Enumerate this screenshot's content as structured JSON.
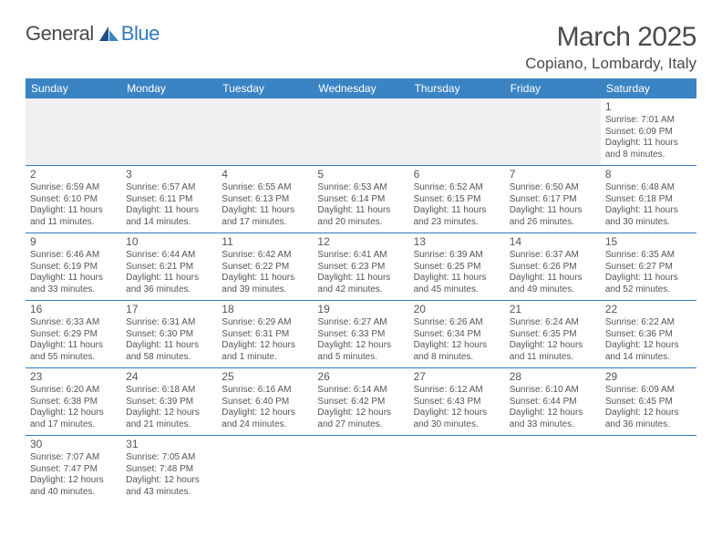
{
  "logo": {
    "text_a": "General",
    "text_b": "Blue"
  },
  "title": "March 2025",
  "location": "Copiano, Lombardy, Italy",
  "colors": {
    "header_bg": "#3b84c4",
    "border": "#2f7bbf",
    "text": "#555555",
    "title_text": "#4a4a4a",
    "empty_bg": "#f0f0f0"
  },
  "days_of_week": [
    "Sunday",
    "Monday",
    "Tuesday",
    "Wednesday",
    "Thursday",
    "Friday",
    "Saturday"
  ],
  "weeks": [
    [
      null,
      null,
      null,
      null,
      null,
      null,
      {
        "n": "1",
        "sunrise": "Sunrise: 7:01 AM",
        "sunset": "Sunset: 6:09 PM",
        "day1": "Daylight: 11 hours",
        "day2": "and 8 minutes."
      }
    ],
    [
      {
        "n": "2",
        "sunrise": "Sunrise: 6:59 AM",
        "sunset": "Sunset: 6:10 PM",
        "day1": "Daylight: 11 hours",
        "day2": "and 11 minutes."
      },
      {
        "n": "3",
        "sunrise": "Sunrise: 6:57 AM",
        "sunset": "Sunset: 6:11 PM",
        "day1": "Daylight: 11 hours",
        "day2": "and 14 minutes."
      },
      {
        "n": "4",
        "sunrise": "Sunrise: 6:55 AM",
        "sunset": "Sunset: 6:13 PM",
        "day1": "Daylight: 11 hours",
        "day2": "and 17 minutes."
      },
      {
        "n": "5",
        "sunrise": "Sunrise: 6:53 AM",
        "sunset": "Sunset: 6:14 PM",
        "day1": "Daylight: 11 hours",
        "day2": "and 20 minutes."
      },
      {
        "n": "6",
        "sunrise": "Sunrise: 6:52 AM",
        "sunset": "Sunset: 6:15 PM",
        "day1": "Daylight: 11 hours",
        "day2": "and 23 minutes."
      },
      {
        "n": "7",
        "sunrise": "Sunrise: 6:50 AM",
        "sunset": "Sunset: 6:17 PM",
        "day1": "Daylight: 11 hours",
        "day2": "and 26 minutes."
      },
      {
        "n": "8",
        "sunrise": "Sunrise: 6:48 AM",
        "sunset": "Sunset: 6:18 PM",
        "day1": "Daylight: 11 hours",
        "day2": "and 30 minutes."
      }
    ],
    [
      {
        "n": "9",
        "sunrise": "Sunrise: 6:46 AM",
        "sunset": "Sunset: 6:19 PM",
        "day1": "Daylight: 11 hours",
        "day2": "and 33 minutes."
      },
      {
        "n": "10",
        "sunrise": "Sunrise: 6:44 AM",
        "sunset": "Sunset: 6:21 PM",
        "day1": "Daylight: 11 hours",
        "day2": "and 36 minutes."
      },
      {
        "n": "11",
        "sunrise": "Sunrise: 6:42 AM",
        "sunset": "Sunset: 6:22 PM",
        "day1": "Daylight: 11 hours",
        "day2": "and 39 minutes."
      },
      {
        "n": "12",
        "sunrise": "Sunrise: 6:41 AM",
        "sunset": "Sunset: 6:23 PM",
        "day1": "Daylight: 11 hours",
        "day2": "and 42 minutes."
      },
      {
        "n": "13",
        "sunrise": "Sunrise: 6:39 AM",
        "sunset": "Sunset: 6:25 PM",
        "day1": "Daylight: 11 hours",
        "day2": "and 45 minutes."
      },
      {
        "n": "14",
        "sunrise": "Sunrise: 6:37 AM",
        "sunset": "Sunset: 6:26 PM",
        "day1": "Daylight: 11 hours",
        "day2": "and 49 minutes."
      },
      {
        "n": "15",
        "sunrise": "Sunrise: 6:35 AM",
        "sunset": "Sunset: 6:27 PM",
        "day1": "Daylight: 11 hours",
        "day2": "and 52 minutes."
      }
    ],
    [
      {
        "n": "16",
        "sunrise": "Sunrise: 6:33 AM",
        "sunset": "Sunset: 6:29 PM",
        "day1": "Daylight: 11 hours",
        "day2": "and 55 minutes."
      },
      {
        "n": "17",
        "sunrise": "Sunrise: 6:31 AM",
        "sunset": "Sunset: 6:30 PM",
        "day1": "Daylight: 11 hours",
        "day2": "and 58 minutes."
      },
      {
        "n": "18",
        "sunrise": "Sunrise: 6:29 AM",
        "sunset": "Sunset: 6:31 PM",
        "day1": "Daylight: 12 hours",
        "day2": "and 1 minute."
      },
      {
        "n": "19",
        "sunrise": "Sunrise: 6:27 AM",
        "sunset": "Sunset: 6:33 PM",
        "day1": "Daylight: 12 hours",
        "day2": "and 5 minutes."
      },
      {
        "n": "20",
        "sunrise": "Sunrise: 6:26 AM",
        "sunset": "Sunset: 6:34 PM",
        "day1": "Daylight: 12 hours",
        "day2": "and 8 minutes."
      },
      {
        "n": "21",
        "sunrise": "Sunrise: 6:24 AM",
        "sunset": "Sunset: 6:35 PM",
        "day1": "Daylight: 12 hours",
        "day2": "and 11 minutes."
      },
      {
        "n": "22",
        "sunrise": "Sunrise: 6:22 AM",
        "sunset": "Sunset: 6:36 PM",
        "day1": "Daylight: 12 hours",
        "day2": "and 14 minutes."
      }
    ],
    [
      {
        "n": "23",
        "sunrise": "Sunrise: 6:20 AM",
        "sunset": "Sunset: 6:38 PM",
        "day1": "Daylight: 12 hours",
        "day2": "and 17 minutes."
      },
      {
        "n": "24",
        "sunrise": "Sunrise: 6:18 AM",
        "sunset": "Sunset: 6:39 PM",
        "day1": "Daylight: 12 hours",
        "day2": "and 21 minutes."
      },
      {
        "n": "25",
        "sunrise": "Sunrise: 6:16 AM",
        "sunset": "Sunset: 6:40 PM",
        "day1": "Daylight: 12 hours",
        "day2": "and 24 minutes."
      },
      {
        "n": "26",
        "sunrise": "Sunrise: 6:14 AM",
        "sunset": "Sunset: 6:42 PM",
        "day1": "Daylight: 12 hours",
        "day2": "and 27 minutes."
      },
      {
        "n": "27",
        "sunrise": "Sunrise: 6:12 AM",
        "sunset": "Sunset: 6:43 PM",
        "day1": "Daylight: 12 hours",
        "day2": "and 30 minutes."
      },
      {
        "n": "28",
        "sunrise": "Sunrise: 6:10 AM",
        "sunset": "Sunset: 6:44 PM",
        "day1": "Daylight: 12 hours",
        "day2": "and 33 minutes."
      },
      {
        "n": "29",
        "sunrise": "Sunrise: 6:09 AM",
        "sunset": "Sunset: 6:45 PM",
        "day1": "Daylight: 12 hours",
        "day2": "and 36 minutes."
      }
    ],
    [
      {
        "n": "30",
        "sunrise": "Sunrise: 7:07 AM",
        "sunset": "Sunset: 7:47 PM",
        "day1": "Daylight: 12 hours",
        "day2": "and 40 minutes."
      },
      {
        "n": "31",
        "sunrise": "Sunrise: 7:05 AM",
        "sunset": "Sunset: 7:48 PM",
        "day1": "Daylight: 12 hours",
        "day2": "and 43 minutes."
      },
      null,
      null,
      null,
      null,
      null
    ]
  ]
}
